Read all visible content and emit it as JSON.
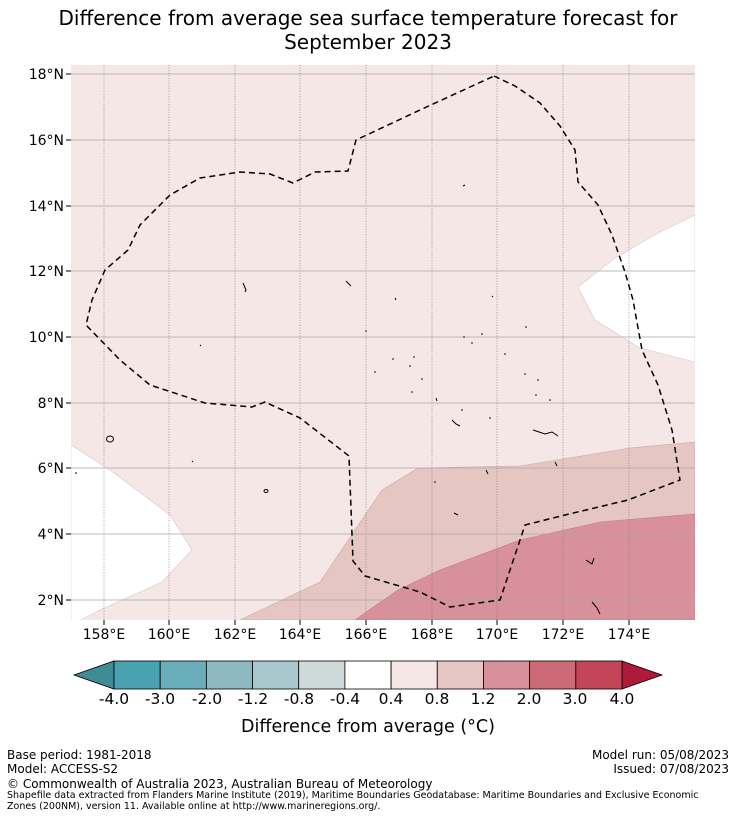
{
  "title": {
    "line1": "Difference from average sea surface temperature forecast for",
    "line2": "September 2023"
  },
  "map": {
    "lat_ticks": [
      "2°N",
      "4°N",
      "6°N",
      "8°N",
      "10°N",
      "12°N",
      "14°N",
      "16°N",
      "18°N"
    ],
    "lon_ticks": [
      "158°E",
      "160°E",
      "162°E",
      "164°E",
      "166°E",
      "168°E",
      "170°E",
      "172°E",
      "174°E"
    ],
    "colors": {
      "anom_0_4_0_8": "#f4e7e6",
      "anom_0_8_1_2": "#e6c6c2",
      "anom_1_2_2_0": "#d8909a",
      "near_zero": "#ffffff"
    },
    "eez_boundary": "dashed"
  },
  "colorbar": {
    "labels": [
      "-4.0",
      "-3.0",
      "-2.0",
      "-1.2",
      "-0.8",
      "-0.4",
      "0.4",
      "0.8",
      "1.2",
      "2.0",
      "3.0",
      "4.0"
    ],
    "colors": [
      "#49a2b0",
      "#6aaebb",
      "#8cb9c2",
      "#a9c8cd",
      "#cedada",
      "#ffffff",
      "#f4e7e6",
      "#e6c6c2",
      "#d8909a",
      "#cd6a78",
      "#c24658"
    ],
    "extend_low_color": "#3f8b96",
    "extend_high_color": "#ae1a3a",
    "title": "Difference from average (°C)"
  },
  "footer": {
    "base_period": "Base period: 1981-2018",
    "model": "Model: ACCESS-S2",
    "model_run": "Model run: 05/08/2023",
    "issued": "Issued: 07/08/2023",
    "copyright": "© Commonwealth of Australia 2023, Australian Bureau of Meteorology",
    "source": "Shapefile data extracted from Flanders Marine Institute (2019), Maritime Boundaries Geodatabase: Maritime Boundaries and Exclusive Economic Zones (200NM), version 11. Available online at http://www.marineregions.org/."
  }
}
